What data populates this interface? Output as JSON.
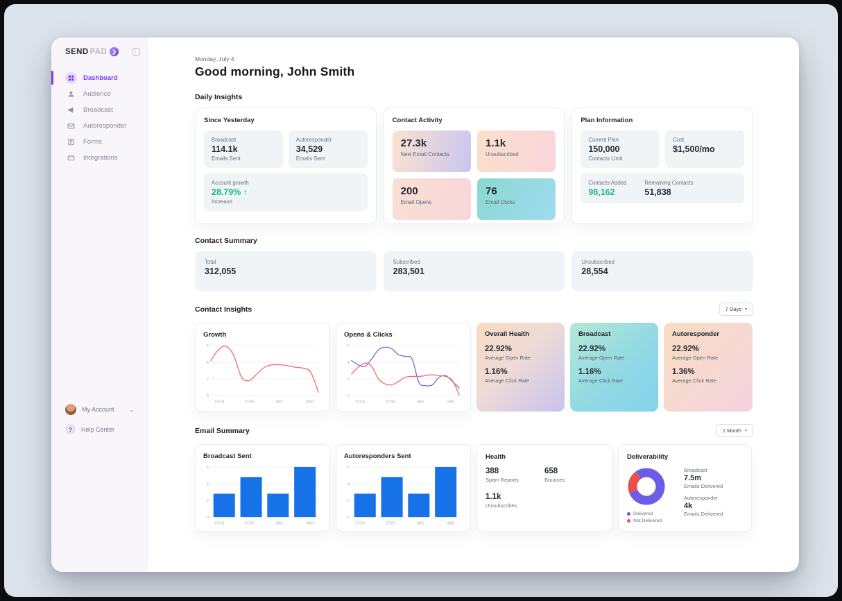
{
  "colors": {
    "accent_purple": "#7c3aed",
    "growth_green": "#12b981",
    "bar_blue": "#1672e6",
    "line_red": "#ee7470",
    "line_purple": "#7a72d6",
    "donut_purple": "#6c5ce7",
    "donut_red": "#e8504f"
  },
  "logo": {
    "bold": "SEND",
    "light": "PAD"
  },
  "sidebar": {
    "items": [
      {
        "label": "Dashboard"
      },
      {
        "label": "Audience"
      },
      {
        "label": "Broadcast"
      },
      {
        "label": "Autoresponder"
      },
      {
        "label": "Forms"
      },
      {
        "label": "Integrations"
      }
    ],
    "account": "My Account",
    "help": "Help Center"
  },
  "header": {
    "date": "Monday, July 4",
    "greeting": "Good morning, John Smith"
  },
  "daily": {
    "title": "Daily Insights",
    "since": {
      "title": "Since Yesterday",
      "broadcast": {
        "label": "Broadcast",
        "value": "114.1k",
        "sub": "Emails Sent"
      },
      "autoresponder": {
        "label": "Autoresponder",
        "value": "34,529",
        "sub": "Emails Sent"
      },
      "growth": {
        "label": "Account growth",
        "value": "28.79% ↑",
        "sub": "Increase"
      }
    },
    "activity": {
      "title": "Contact Activity",
      "tiles": [
        {
          "value": "27.3k",
          "label": "New Email Contacts"
        },
        {
          "value": "1.1k",
          "label": "Unsubscribed"
        },
        {
          "value": "200",
          "label": "Email Opens"
        },
        {
          "value": "76",
          "label": "Email Clicks"
        }
      ]
    },
    "plan": {
      "title": "Plan Information",
      "current": {
        "label": "Current Plan",
        "value": "150,000",
        "sub": "Contacts Limit"
      },
      "cost": {
        "label": "Cost",
        "value": "$1,500/mo"
      },
      "added": {
        "label": "Contacts Added",
        "value": "98,162"
      },
      "remaining": {
        "label": "Remaining Contacts",
        "value": "51,838"
      }
    }
  },
  "contact_summary": {
    "title": "Contact Summary",
    "tiles": [
      {
        "label": "Total",
        "value": "312,055"
      },
      {
        "label": "Subscribed",
        "value": "283,501"
      },
      {
        "label": "Unsubscribed",
        "value": "28,554"
      }
    ]
  },
  "contact_insights": {
    "title": "Contact Insights",
    "range": "7 Days",
    "cards": [
      {
        "title": "Overall Health",
        "open": "22.92%",
        "open_label": "Average Open Rate",
        "click": "1.16%",
        "click_label": "Average Click Rate"
      },
      {
        "title": "Broadcast",
        "open": "22.92%",
        "open_label": "Average Open Rate",
        "click": "1.16%",
        "click_label": "Average Click Rate"
      },
      {
        "title": "Autoresponder",
        "open": "22.92%",
        "open_label": "Average Open Rate",
        "click": "1.36%",
        "click_label": "Average Click Rate"
      }
    ]
  },
  "email_summary": {
    "title": "Email Summary",
    "range": "1 Month",
    "health": {
      "title": "Health",
      "spam": {
        "value": "388",
        "label": "Spam Reports"
      },
      "bounces": {
        "value": "658",
        "label": "Bounces"
      },
      "unsub": {
        "value": "1.1k",
        "label": "Unsubscribes"
      }
    },
    "deliverability": {
      "title": "Deliverability",
      "broadcast": {
        "label": "Broadcast",
        "value": "7.5m",
        "sub": "Emails Delivered"
      },
      "autoresponder": {
        "label": "Autoresponder",
        "value": "4k",
        "sub": "Emails Delivered"
      }
    }
  },
  "chart_data": [
    {
      "id": "growth",
      "type": "line",
      "title": "Growth",
      "x_ticks": [
        "07/18",
        "07/25",
        "08/1",
        "08/8"
      ],
      "y_ticks": [
        0,
        2,
        4,
        6
      ],
      "ylim": [
        0,
        6
      ],
      "grid": true,
      "legend": "none",
      "series": [
        {
          "name": "Growth",
          "color": "#ee7470",
          "values": [
            4.2,
            5.5,
            5.9,
            4.8,
            2.2,
            1.8,
            2.6,
            3.4,
            3.7,
            3.7,
            3.6,
            3.4,
            3.3,
            2.8,
            0.4
          ]
        }
      ]
    },
    {
      "id": "opens_clicks",
      "type": "line",
      "title": "Opens & Clicks",
      "x_ticks": [
        "07/18",
        "07/25",
        "08/1",
        "08/8"
      ],
      "y_ticks": [
        0,
        2,
        4,
        6
      ],
      "ylim": [
        0,
        6
      ],
      "grid": true,
      "legend": "none",
      "series": [
        {
          "name": "Opens",
          "color": "#7a72d6",
          "values": [
            4.2,
            3.7,
            3.5,
            4.4,
            5.5,
            5.8,
            5.6,
            4.9,
            4.7,
            4.4,
            1.6,
            1.2,
            1.3,
            2.2,
            2.4,
            1.7,
            0.9
          ]
        },
        {
          "name": "Clicks",
          "color": "#ee7470",
          "values": [
            2.6,
            3.4,
            3.9,
            3.5,
            2.0,
            1.4,
            1.3,
            1.7,
            2.2,
            2.3,
            2.3,
            2.4,
            2.5,
            2.4,
            2.3,
            1.8,
            0.1
          ]
        }
      ]
    },
    {
      "id": "broadcast_sent",
      "type": "bar",
      "title": "Broadcast Sent",
      "categories": [
        "07/18",
        "07/25",
        "08/1",
        "08/8"
      ],
      "values": [
        2.8,
        4.8,
        2.8,
        6.0
      ],
      "color": "#1672e6",
      "y_ticks": [
        0,
        2,
        4,
        6
      ],
      "ylim": [
        0,
        6
      ],
      "grid": true
    },
    {
      "id": "autoresponders_sent",
      "type": "bar",
      "title": "Autoresponders Sent",
      "categories": [
        "07/18",
        "07/25",
        "08/1",
        "08/8"
      ],
      "values": [
        2.8,
        4.8,
        2.8,
        6.0
      ],
      "color": "#1672e6",
      "y_ticks": [
        0,
        2,
        4,
        6
      ],
      "ylim": [
        0,
        6
      ],
      "grid": true
    },
    {
      "id": "deliverability_donut",
      "type": "donut",
      "title": "Deliverability",
      "values": [
        {
          "label": "Delivered",
          "value": 79,
          "color": "#6c5ce7"
        },
        {
          "label": "Not Delivered",
          "value": 21,
          "color": "#e8504f"
        }
      ],
      "legend": "bottom-left"
    }
  ]
}
